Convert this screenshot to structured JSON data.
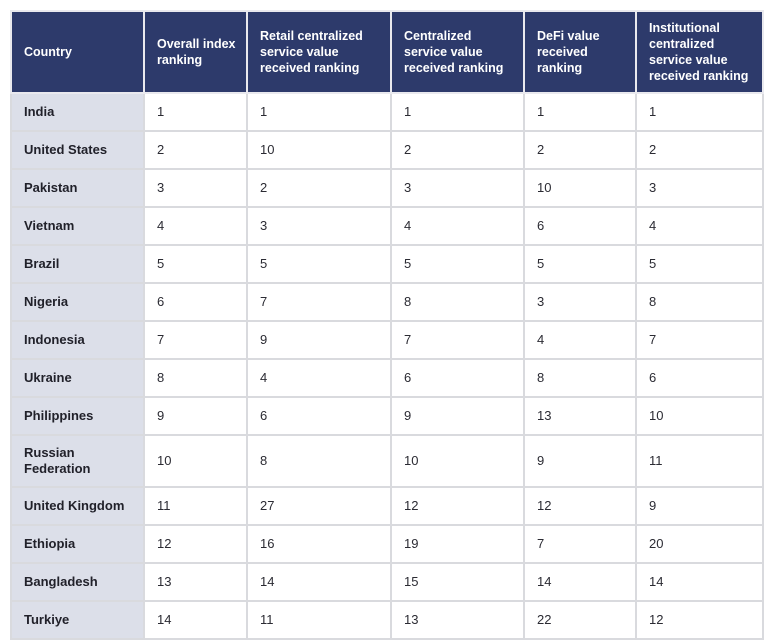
{
  "chart_data": {
    "type": "table",
    "title": "",
    "columns": [
      "Country",
      "Overall index ranking",
      "Retail centralized service value received ranking",
      "Centralized service value received ranking",
      "DeFi value received ranking",
      "Institutional centralized service value received ranking"
    ],
    "rows": [
      {
        "country": "India",
        "values": [
          1,
          1,
          1,
          1,
          1
        ]
      },
      {
        "country": "United States",
        "values": [
          2,
          10,
          2,
          2,
          2
        ]
      },
      {
        "country": "Pakistan",
        "values": [
          3,
          2,
          3,
          10,
          3
        ]
      },
      {
        "country": "Vietnam",
        "values": [
          4,
          3,
          4,
          6,
          4
        ]
      },
      {
        "country": "Brazil",
        "values": [
          5,
          5,
          5,
          5,
          5
        ]
      },
      {
        "country": "Nigeria",
        "values": [
          6,
          7,
          8,
          3,
          8
        ]
      },
      {
        "country": "Indonesia",
        "values": [
          7,
          9,
          7,
          4,
          7
        ]
      },
      {
        "country": "Ukraine",
        "values": [
          8,
          4,
          6,
          8,
          6
        ]
      },
      {
        "country": "Philippines",
        "values": [
          9,
          6,
          9,
          13,
          10
        ]
      },
      {
        "country": "Russian Federation",
        "values": [
          10,
          8,
          10,
          9,
          11
        ]
      },
      {
        "country": "United Kingdom",
        "values": [
          11,
          27,
          12,
          12,
          9
        ]
      },
      {
        "country": "Ethiopia",
        "values": [
          12,
          16,
          19,
          7,
          20
        ]
      },
      {
        "country": "Bangladesh",
        "values": [
          13,
          14,
          15,
          14,
          14
        ]
      },
      {
        "country": "Turkiye",
        "values": [
          14,
          11,
          13,
          22,
          12
        ]
      }
    ]
  },
  "colors": {
    "header_bg": "#2d3a6b",
    "header_text": "#ffffff",
    "row_label_bg": "#dcdfe9",
    "cell_bg": "#ffffff",
    "border": "#d9dade",
    "body_text": "#2b2b33"
  }
}
